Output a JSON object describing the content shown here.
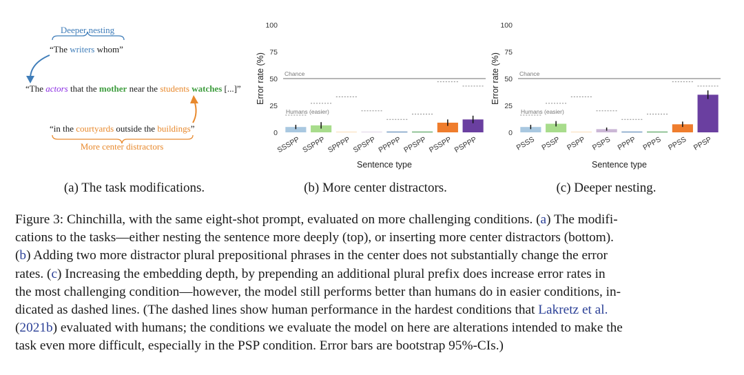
{
  "panel_a": {
    "deeper_nesting_label": "Deeper nesting",
    "top_quote_open": "“The ",
    "top_writers": "writers",
    "top_quote_close": " whom”",
    "main_open": "“The ",
    "main_actors": "actors",
    "main_that_the": " that the ",
    "main_mother": "mother",
    "main_near_the": " near the ",
    "main_students": "students",
    "main_space": " ",
    "main_watches": "watches",
    "main_close": " [...]”",
    "bottom_open": "“in the ",
    "bottom_courtyards": "courtyards",
    "bottom_outside_the": " outside the ",
    "bottom_buildings": "buildings",
    "bottom_close": "”",
    "more_center_label": "More center distractors",
    "colors": {
      "blue": "#3f7db9",
      "purple": "#8a2be2",
      "green": "#3f9d3f",
      "orange": "#e8892d"
    }
  },
  "subcaptions": {
    "a": "(a) The task modifications.",
    "b": "(b) More center distractors.",
    "c": "(c) Deeper nesting."
  },
  "chart_data": [
    {
      "type": "bar",
      "ylabel": "Error rate (%)",
      "xlabel": "Sentence type",
      "yticks": [
        0,
        25,
        50,
        75,
        100
      ],
      "ylim": [
        0,
        100
      ],
      "chance_label": "Chance",
      "chance_value": 50,
      "humans_label": "Humans (easier)",
      "categories": [
        "SSSPP",
        "SSPPP",
        "SPPPP",
        "SPSPP",
        "PPPPP",
        "PPSPP",
        "PSSPP",
        "PSPPP"
      ],
      "values": [
        5,
        6.5,
        0.4,
        0.4,
        0.6,
        0.6,
        9,
        12
      ],
      "errors": [
        2,
        3,
        0.4,
        0.4,
        0.5,
        0.5,
        3,
        3.5
      ],
      "human_values": [
        16,
        27,
        33,
        20,
        12,
        17,
        47,
        43
      ],
      "colors": [
        "#a9c8e0",
        "#a8dc8c",
        "#f7c68a",
        "#cbb7d6",
        "#3a6fa8",
        "#2f8f3a",
        "#ef7d2d",
        "#6a3fa0"
      ]
    },
    {
      "type": "bar",
      "ylabel": "Error rate (%)",
      "xlabel": "Sentence type",
      "yticks": [
        0,
        25,
        50,
        75,
        100
      ],
      "ylim": [
        0,
        100
      ],
      "chance_label": "Chance",
      "chance_value": 50,
      "humans_label": "Humans (easier)",
      "categories": [
        "PSSS",
        "PSSP",
        "PSPP",
        "PSPS",
        "PPPP",
        "PPPS",
        "PPSS",
        "PPSP"
      ],
      "values": [
        5,
        8,
        0.4,
        3,
        0.6,
        0.6,
        7.5,
        35
      ],
      "errors": [
        2,
        2.5,
        0.4,
        1.5,
        0.5,
        0.5,
        2.5,
        4
      ],
      "human_values": [
        16,
        27,
        33,
        20,
        12,
        17,
        47,
        43
      ],
      "colors": [
        "#a9c8e0",
        "#a8dc8c",
        "#f7c68a",
        "#cbb7d6",
        "#3a6fa8",
        "#2f8f3a",
        "#ef7d2d",
        "#6a3fa0"
      ]
    }
  ],
  "caption": {
    "l1_a": "Figure 3: Chinchilla, with the same eight-shot prompt, evaluated on more challenging conditions. (",
    "l1_link": "a",
    "l1_b": ") The modifi-",
    "l2": "cations to the tasks—either nesting the sentence more deeply (top), or inserting more center distractors (bottom).",
    "l3_open": "(",
    "l3_link": "b",
    "l3_rest": ") Adding two more distractor plural prepositional phrases in the center does not substantially change the error",
    "l4_a": "rates.  (",
    "l4_link": "c",
    "l4_b": ") Increasing the embedding depth, by prepending an additional plural prefix does increase error rates in",
    "l5": "the most challenging condition—however, the model still performs better than humans do in easier conditions, in-",
    "l6_a": "dicated as dashed lines.  (The dashed lines show human performance in the hardest conditions that ",
    "l6_link": "Lakretz et al.",
    "l7_open": "(",
    "l7_link": "2021b",
    "l7_rest": ") evaluated with humans; the conditions we evaluate the model on here are alterations intended to make the",
    "l8": "task even more difficult, especially in the PSP condition. Error bars are bootstrap 95%-CIs.)"
  }
}
